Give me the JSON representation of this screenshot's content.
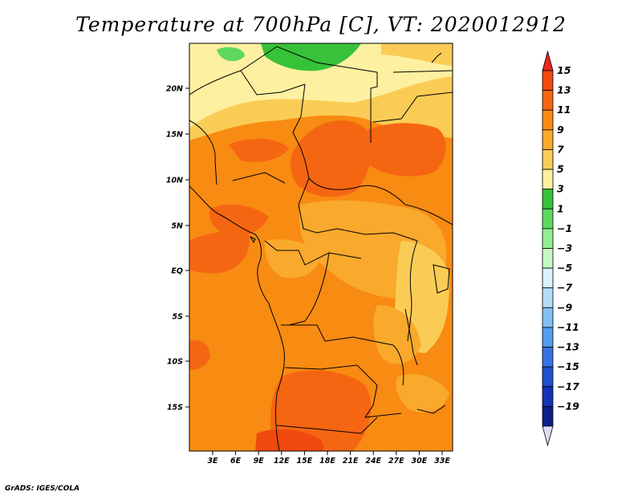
{
  "title": "Temperature at 700hPa [C], VT: 2020012912",
  "footer": "GrADS: IGES/COLA",
  "map": {
    "lat_labels": [
      "20N",
      "15N",
      "10N",
      "5N",
      "EQ",
      "5S",
      "10S",
      "15S"
    ],
    "lon_labels": [
      "3E",
      "6E",
      "9E",
      "12E",
      "15E",
      "18E",
      "21E",
      "24E",
      "27E",
      "30E",
      "33E"
    ]
  },
  "colorbar": {
    "levels": [
      "15",
      "13",
      "11",
      "9",
      "7",
      "5",
      "3",
      "1",
      "−1",
      "−3",
      "−5",
      "−7",
      "−9",
      "−11",
      "−13",
      "−15",
      "−17",
      "−19"
    ],
    "colors": [
      "#e8281e",
      "#f04a0f",
      "#f56612",
      "#f88b12",
      "#f9a92c",
      "#fbcc55",
      "#fdf0a0",
      "#37c23a",
      "#5fd85f",
      "#94ed92",
      "#c5f8c3",
      "#d9f1fc",
      "#b4dcf8",
      "#82c0f3",
      "#579ded",
      "#3773df",
      "#1f4fcc",
      "#1433b4",
      "#0a1f88",
      "#dcdcfa"
    ]
  }
}
